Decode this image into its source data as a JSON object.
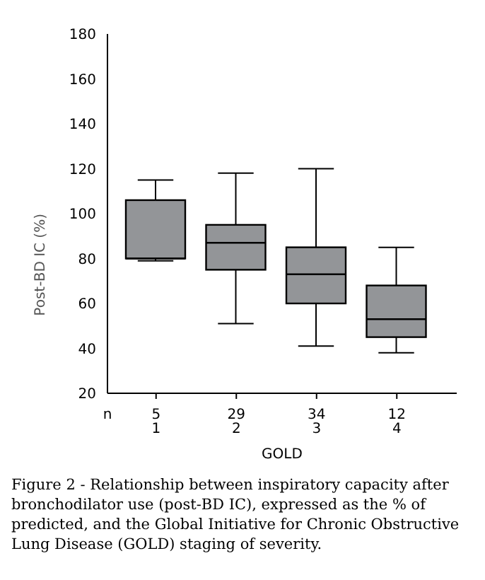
{
  "chart_data": {
    "type": "box",
    "ylabel": "Post-BD IC (%)",
    "xlabel": "GOLD",
    "categories": [
      "1",
      "2",
      "3",
      "4"
    ],
    "boxes": [
      {
        "low": 79,
        "q1": 80,
        "median": 80,
        "q3": 106,
        "high": 115
      },
      {
        "low": 51,
        "q1": 75,
        "median": 87,
        "q3": 95,
        "high": 118
      },
      {
        "low": 41,
        "q1": 60,
        "median": 73,
        "q3": 85,
        "high": 120
      },
      {
        "low": 38,
        "q1": 45,
        "median": 53,
        "q3": 68,
        "high": 85
      }
    ],
    "color": "#939598",
    "ylim": [
      20,
      180
    ],
    "yticks": [
      20,
      40,
      60,
      80,
      100,
      120,
      140,
      160,
      180
    ],
    "grid": false,
    "annotations": [
      "n",
      "5",
      "29",
      "34",
      "12",
      "Figure 2 - Relationship between inspiratory capacity after bronchodilator use (post-BD IC), expressed as the % of predicted, and the Global Initiative for Chronic Obstructive Lung Disease (GOLD) staging of severity."
    ]
  }
}
